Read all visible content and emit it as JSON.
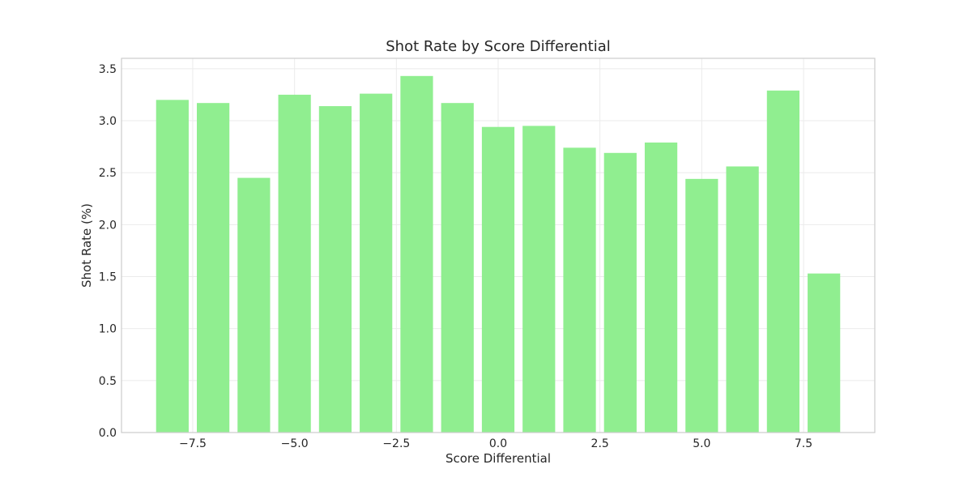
{
  "chart_data": {
    "type": "bar",
    "title": "Shot Rate by Score Differential",
    "xlabel": "Score Differential",
    "ylabel": "Shot Rate (%)",
    "x": [
      -8,
      -7,
      -6,
      -5,
      -4,
      -3,
      -2,
      -1,
      0,
      1,
      2,
      3,
      4,
      5,
      6,
      7,
      8
    ],
    "values": [
      3.2,
      3.17,
      2.45,
      3.25,
      3.14,
      3.26,
      3.43,
      3.17,
      2.94,
      2.95,
      2.74,
      2.69,
      2.79,
      2.44,
      2.56,
      3.29,
      1.53
    ],
    "xlim": [
      -9.25,
      9.25
    ],
    "ylim": [
      0,
      3.6
    ],
    "xticks": [
      -7.5,
      -5.0,
      -2.5,
      0.0,
      2.5,
      5.0,
      7.5
    ],
    "xtick_labels": [
      "−7.5",
      "−5.0",
      "−2.5",
      "0.0",
      "2.5",
      "5.0",
      "7.5"
    ],
    "yticks": [
      0,
      0.5,
      1.0,
      1.5,
      2.0,
      2.5,
      3.0,
      3.5
    ],
    "ytick_labels": [
      "0.0",
      "0.5",
      "1.0",
      "1.5",
      "2.0",
      "2.5",
      "3.0",
      "3.5"
    ],
    "bar_width": 0.8,
    "grid": true,
    "bar_color": "#90ee90"
  }
}
